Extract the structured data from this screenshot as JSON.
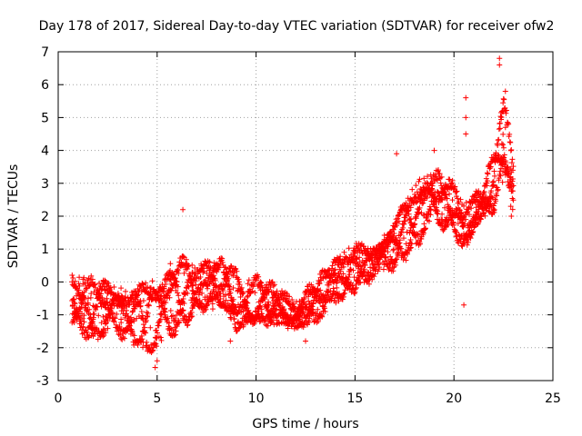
{
  "chart_data": {
    "type": "scatter",
    "title": "Day 178 of 2017, Sidereal Day-to-day VTEC variation (SDTVAR) for receiver ofw2",
    "xlabel": "GPS time / hours",
    "ylabel": "SDTVAR / TECUs",
    "xlim": [
      0,
      25
    ],
    "ylim": [
      -3,
      7
    ],
    "xticks": [
      "0",
      "5",
      "10",
      "15",
      "20",
      "25"
    ],
    "yticks": [
      "-3",
      "-2",
      "-1",
      "0",
      "1",
      "2",
      "3",
      "4",
      "5",
      "6",
      "7"
    ],
    "grid": true,
    "marker": "+",
    "series_color": "#ff0000",
    "trend_knots": [
      {
        "x": 0.7,
        "lo": -1.3,
        "hi": 0.3
      },
      {
        "x": 1.5,
        "lo": -1.8,
        "hi": 0.1
      },
      {
        "x": 2.5,
        "lo": -1.6,
        "hi": 0.1
      },
      {
        "x": 3.5,
        "lo": -1.7,
        "hi": -0.3
      },
      {
        "x": 4.5,
        "lo": -2.2,
        "hi": 0.4
      },
      {
        "x": 5.0,
        "lo": -2.0,
        "hi": 0.2
      },
      {
        "x": 6.0,
        "lo": -1.5,
        "hi": 0.8
      },
      {
        "x": 7.0,
        "lo": -1.0,
        "hi": 0.7
      },
      {
        "x": 8.5,
        "lo": -0.8,
        "hi": 0.6
      },
      {
        "x": 9.0,
        "lo": -1.7,
        "hi": 0.3
      },
      {
        "x": 10.0,
        "lo": -1.5,
        "hi": 0.1
      },
      {
        "x": 11.0,
        "lo": -1.3,
        "hi": -0.2
      },
      {
        "x": 12.0,
        "lo": -1.5,
        "hi": -0.6
      },
      {
        "x": 13.0,
        "lo": -1.2,
        "hi": 0.0
      },
      {
        "x": 14.0,
        "lo": -0.8,
        "hi": 0.8
      },
      {
        "x": 15.0,
        "lo": -0.2,
        "hi": 1.2
      },
      {
        "x": 16.0,
        "lo": 0.2,
        "hi": 1.0
      },
      {
        "x": 17.0,
        "lo": 0.5,
        "hi": 2.0
      },
      {
        "x": 18.0,
        "lo": 1.0,
        "hi": 3.0
      },
      {
        "x": 19.0,
        "lo": 1.8,
        "hi": 3.5
      },
      {
        "x": 20.0,
        "lo": 1.5,
        "hi": 3.0
      },
      {
        "x": 20.5,
        "lo": 0.8,
        "hi": 2.5
      },
      {
        "x": 21.5,
        "lo": 2.0,
        "hi": 2.8
      },
      {
        "x": 22.0,
        "lo": 2.0,
        "hi": 4.0
      },
      {
        "x": 22.5,
        "lo": 3.0,
        "hi": 5.5
      },
      {
        "x": 23.0,
        "lo": 2.0,
        "hi": 4.5
      }
    ],
    "outliers": [
      {
        "x": 6.3,
        "y": 2.2
      },
      {
        "x": 5.0,
        "y": -2.4
      },
      {
        "x": 4.9,
        "y": -2.6
      },
      {
        "x": 17.1,
        "y": 3.9
      },
      {
        "x": 19.0,
        "y": 4.0
      },
      {
        "x": 20.6,
        "y": 5.6
      },
      {
        "x": 20.6,
        "y": 5.0
      },
      {
        "x": 20.6,
        "y": 4.5
      },
      {
        "x": 22.3,
        "y": 6.8
      },
      {
        "x": 22.3,
        "y": 6.6
      },
      {
        "x": 22.6,
        "y": 5.8
      },
      {
        "x": 22.6,
        "y": 4.7
      },
      {
        "x": 22.9,
        "y": 2.0
      },
      {
        "x": 20.5,
        "y": -0.7
      },
      {
        "x": 8.7,
        "y": -1.8
      },
      {
        "x": 12.5,
        "y": -1.8
      }
    ]
  }
}
